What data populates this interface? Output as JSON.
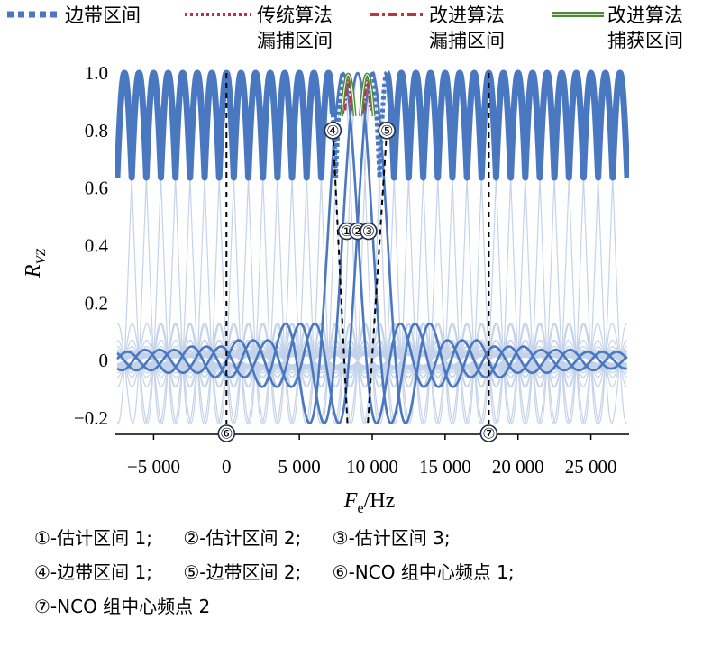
{
  "legend": [
    {
      "line1": "边带区间",
      "line2": ""
    },
    {
      "line1": "传统算法",
      "line2": "漏捕区间"
    },
    {
      "line1": "改进算法",
      "line2": "漏捕区间"
    },
    {
      "line1": "改进算法",
      "line2": "捕获区间"
    }
  ],
  "colors": {
    "main": "#4a78c0",
    "bg_curve": "#c5d3ea",
    "traditional": "#b83248",
    "improved_miss": "#c0343f",
    "improved_capture": "#4d8a3a"
  },
  "chart_data": {
    "type": "line",
    "xlabel": "F_e/Hz",
    "xlabel_main": "F",
    "xlabel_sub": "e",
    "xlabel_unit": "/Hz",
    "ylabel_main": "R",
    "ylabel_sub": "VZ",
    "xlim": [
      -7500,
      27500
    ],
    "ylim": [
      -0.25,
      1.05
    ],
    "x_ticks": [
      -5000,
      0,
      5000,
      10000,
      15000,
      20000,
      25000
    ],
    "x_tick_labels": [
      "−5 000",
      "0",
      "5 000",
      "10 000",
      "15 000",
      "20 000",
      "25 000"
    ],
    "y_ticks": [
      1.0,
      0.8,
      0.6,
      0.4,
      0.2,
      0,
      -0.2
    ],
    "y_tick_labels": [
      "1.0",
      "0.8",
      "0.6",
      "0.4",
      "0.2",
      "0",
      "−0.2"
    ],
    "bin_spacing_hz": 1000,
    "sideband_envelope_min": 0.81,
    "nco_center_freqs": [
      0,
      18000
    ],
    "estimate_peaks": [
      8000,
      9000,
      10000
    ],
    "markers": [
      {
        "label": "①",
        "x": 8250,
        "y": 0.45
      },
      {
        "label": "②",
        "x": 9000,
        "y": 0.45
      },
      {
        "label": "③",
        "x": 9750,
        "y": 0.45
      },
      {
        "label": "④",
        "x": 7300,
        "y": 0.8
      },
      {
        "label": "⑤",
        "x": 11000,
        "y": 0.8
      },
      {
        "label": "⑥",
        "x": 0,
        "y": -0.255
      },
      {
        "label": "⑦",
        "x": 18000,
        "y": -0.255
      }
    ]
  },
  "notes": [
    [
      "①-估计区间 1;",
      "②-估计区间 2;",
      "③-估计区间 3;"
    ],
    [
      "④-边带区间 1;",
      "⑤-边带区间 2;",
      "⑥-NCO 组中心频点 1;"
    ],
    [
      "⑦-NCO 组中心频点 2"
    ]
  ]
}
